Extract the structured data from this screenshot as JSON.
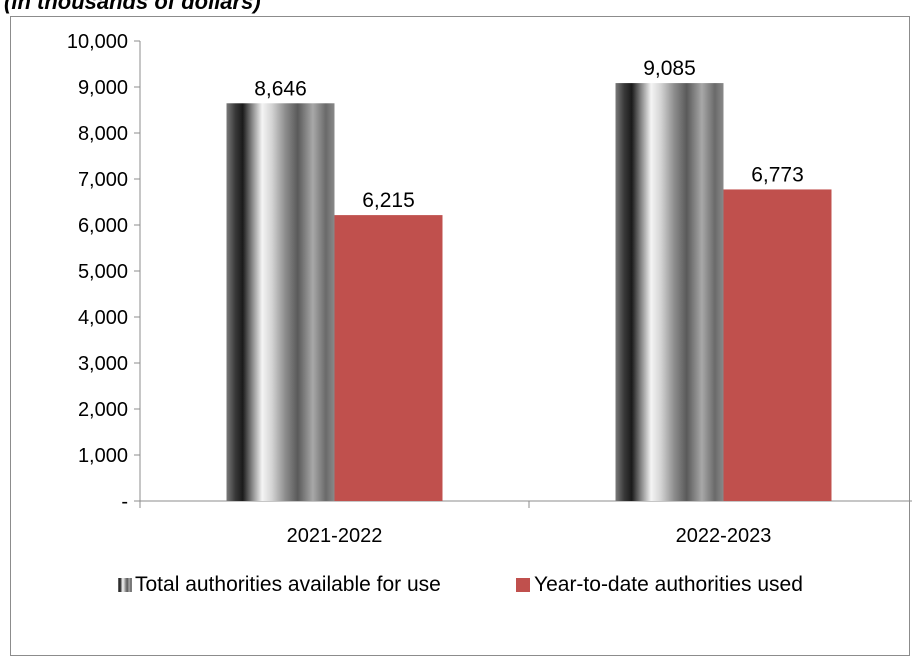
{
  "chart_data": {
    "type": "bar",
    "subtitle": "(in thousands of dollars)",
    "categories": [
      "2021-2022",
      "2022-2023"
    ],
    "series": [
      {
        "name": "Total authorities available for use",
        "values": [
          8646,
          9085
        ],
        "labels": [
          "8,646",
          "9,085"
        ],
        "style": "metallic-gray-gradient"
      },
      {
        "name": "Year-to-date authorities used",
        "values": [
          6215,
          6773
        ],
        "labels": [
          "6,215",
          "6,773"
        ],
        "color": "#c0504d"
      }
    ],
    "ylim": [
      0,
      10000
    ],
    "yticks": [
      0,
      1000,
      2000,
      3000,
      4000,
      5000,
      6000,
      7000,
      8000,
      9000,
      10000
    ],
    "ytick_labels": [
      "-",
      "1,000",
      "2,000",
      "3,000",
      "4,000",
      "5,000",
      "6,000",
      "7,000",
      "8,000",
      "9,000",
      "10,000"
    ],
    "grid": false,
    "legend_position": "bottom"
  }
}
